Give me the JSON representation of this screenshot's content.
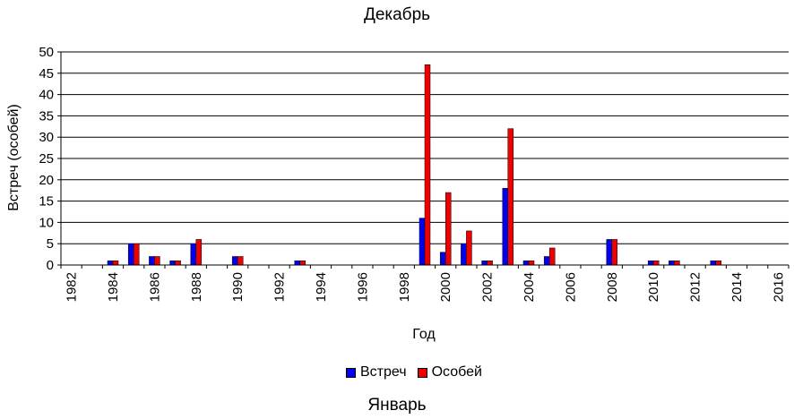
{
  "title": "Декабрь",
  "footer_title": "Январь",
  "colors": {
    "s1": "#0000ee",
    "s2": "#ee0000"
  },
  "chart_data": {
    "type": "bar",
    "title": "Декабрь",
    "xlabel": "Год",
    "ylabel": "Встреч (особей)",
    "ylim": [
      0,
      50
    ],
    "yticks": [
      0,
      5,
      10,
      15,
      20,
      25,
      30,
      35,
      40,
      45,
      50
    ],
    "grid": true,
    "legend": "bottom",
    "categories": [
      "1982",
      "1983",
      "1984",
      "1985",
      "1986",
      "1987",
      "1988",
      "1989",
      "1990",
      "1991",
      "1992",
      "1993",
      "1994",
      "1995",
      "1996",
      "1997",
      "1998",
      "1999",
      "2000",
      "2001",
      "2002",
      "2003",
      "2004",
      "2005",
      "2006",
      "2007",
      "2008",
      "2009",
      "2010",
      "2011",
      "2012",
      "2013",
      "2014",
      "2015",
      "2016"
    ],
    "tick_labels": [
      "1982",
      "",
      "1984",
      "",
      "1986",
      "",
      "1988",
      "",
      "1990",
      "",
      "1992",
      "",
      "1994",
      "",
      "1996",
      "",
      "1998",
      "",
      "2000",
      "",
      "2002",
      "",
      "2004",
      "",
      "2006",
      "",
      "2008",
      "",
      "2010",
      "",
      "2012",
      "",
      "2014",
      "",
      "2016"
    ],
    "series": [
      {
        "name": "Встреч",
        "values": [
          0,
          0,
          1,
          5,
          2,
          1,
          5,
          0,
          2,
          0,
          0,
          1,
          0,
          0,
          0,
          0,
          0,
          11,
          3,
          5,
          1,
          18,
          1,
          2,
          0,
          0,
          6,
          0,
          1,
          1,
          0,
          1,
          0,
          0,
          0
        ]
      },
      {
        "name": "Особей",
        "values": [
          0,
          0,
          1,
          5,
          2,
          1,
          6,
          0,
          2,
          0,
          0,
          1,
          0,
          0,
          0,
          0,
          0,
          47,
          17,
          8,
          1,
          32,
          1,
          4,
          0,
          0,
          6,
          0,
          1,
          1,
          0,
          1,
          0,
          0,
          0
        ]
      }
    ]
  }
}
